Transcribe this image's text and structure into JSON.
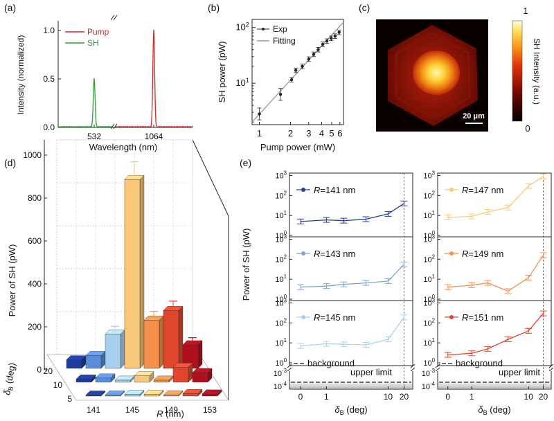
{
  "panel_labels": [
    "(a)",
    "(b)",
    "(c)",
    "(d)",
    "(e)"
  ],
  "chart_data": [
    {
      "panel": "(a)",
      "type": "line",
      "xlabel": "Wavelength (nm)",
      "ylabel": "Intensity (normalized)",
      "x_ticks": [
        "532",
        "1064"
      ],
      "y_ticks": [
        "0.0",
        "0.5",
        "1.0"
      ],
      "ylim": [
        0,
        1.1
      ],
      "axis_break": true,
      "series": [
        {
          "name": "Pump",
          "color": "#d62728",
          "peak_x": 1064,
          "peak_y": 1.0
        },
        {
          "name": "SH",
          "color": "#2ca02c",
          "peak_x": 532,
          "peak_y": 0.5
        }
      ]
    },
    {
      "panel": "(b)",
      "type": "scatter",
      "xlabel": "Pump power (mW)",
      "ylabel": "SH power (pW)",
      "x_scale": "log",
      "y_scale": "log",
      "x_ticks": [
        "1",
        "2",
        "3",
        "4",
        "5",
        "6"
      ],
      "y_ticks": [
        "10^1",
        "10^2"
      ],
      "xlim": [
        0.85,
        6.5
      ],
      "ylim": [
        1.8,
        140
      ],
      "series": [
        {
          "name": "Exp",
          "x": [
            1.0,
            1.6,
            2.05,
            2.25,
            2.6,
            3.0,
            3.35,
            3.7,
            4.1,
            4.5,
            4.95,
            5.4,
            5.9
          ],
          "y": [
            2.8,
            6.3,
            11.5,
            17,
            20,
            27,
            33,
            40,
            50,
            57,
            64,
            70,
            82
          ]
        },
        {
          "name": "Fitting",
          "x": [
            0.85,
            6.5
          ],
          "y": [
            2.0,
            125
          ]
        }
      ]
    },
    {
      "panel": "(c)",
      "type": "heatmap",
      "colorbar_label": "SH Intensity (a.u.)",
      "colorbar_ticks": [
        "1",
        "0"
      ],
      "scale_bar": "20 μm"
    },
    {
      "panel": "(d)",
      "type": "bar",
      "ylabel": "Power of SH (pW)",
      "xlabel_var": "R",
      "xlabel_unit": " (nm)",
      "zlabel_var": "δ",
      "zlabel_sub": "B",
      "zlabel_unit": " (deg)",
      "y_ticks": [
        0,
        200,
        400,
        600,
        800,
        1000
      ],
      "ylim": [
        0,
        1000
      ],
      "x_categories": [
        "141",
        "143",
        "145",
        "147",
        "149",
        "151",
        "153"
      ],
      "x_tick_labels": [
        "141",
        "145",
        "149",
        "153"
      ],
      "depth_categories": [
        "5",
        "10",
        "20"
      ],
      "depth_tick_labels": [
        "20",
        "10",
        "5"
      ],
      "colors": [
        "#1f3c9c",
        "#5b8ed6",
        "#a8d0ee",
        "#f9c87a",
        "#f5904a",
        "#e0462c",
        "#b0101e"
      ],
      "values": {
        "20": [
          40,
          60,
          160,
          880,
          225,
          270,
          110
        ],
        "10": [
          15,
          20,
          10,
          30,
          10,
          70,
          45
        ],
        "5": [
          5,
          5,
          8,
          8,
          5,
          12,
          10
        ]
      }
    },
    {
      "panel": "(e)",
      "type": "line",
      "ylabel": "Power of SH (pW)",
      "xlabel_var": "δ",
      "xlabel_sub": "B",
      "xlabel_unit": " (deg)",
      "x_ticks": [
        "0",
        "1",
        "10",
        "20"
      ],
      "y_ticks": [
        "10^0",
        "10^1",
        "10^2",
        "10^3"
      ],
      "y_break_ticks": [
        "10^-3",
        "10^-4"
      ],
      "background_label_1": "background",
      "background_label_2": "upper limit",
      "r_prefix": "R",
      "series": [
        {
          "name": "141 nm",
          "color": "#1f3c9c",
          "x": [
            0,
            1,
            2,
            5,
            10,
            20
          ],
          "y": [
            5,
            6,
            5.5,
            6.5,
            12,
            40
          ]
        },
        {
          "name": "143 nm",
          "color": "#7fa3d4",
          "x": [
            0,
            1,
            2,
            5,
            10,
            20
          ],
          "y": [
            4,
            4.5,
            5.5,
            6.5,
            8,
            55
          ]
        },
        {
          "name": "145 nm",
          "color": "#a8d0ee",
          "x": [
            0,
            1,
            2,
            5,
            10,
            20
          ],
          "y": [
            7,
            9,
            8.5,
            8,
            15,
            190
          ]
        },
        {
          "name": "147 nm",
          "color": "#f9c87a",
          "x": [
            0,
            1,
            2,
            5,
            10,
            20
          ],
          "y": [
            8,
            9,
            15,
            25,
            300,
            900
          ]
        },
        {
          "name": "149 nm",
          "color": "#f5904a",
          "x": [
            0,
            1,
            2,
            5,
            10,
            20
          ],
          "y": [
            4,
            5,
            6.5,
            2.5,
            12,
            160
          ]
        },
        {
          "name": "151 nm",
          "color": "#e0462c",
          "x": [
            0,
            1,
            2,
            5,
            10,
            20
          ],
          "y": [
            2.5,
            3,
            5,
            15,
            40,
            300
          ]
        }
      ]
    }
  ]
}
